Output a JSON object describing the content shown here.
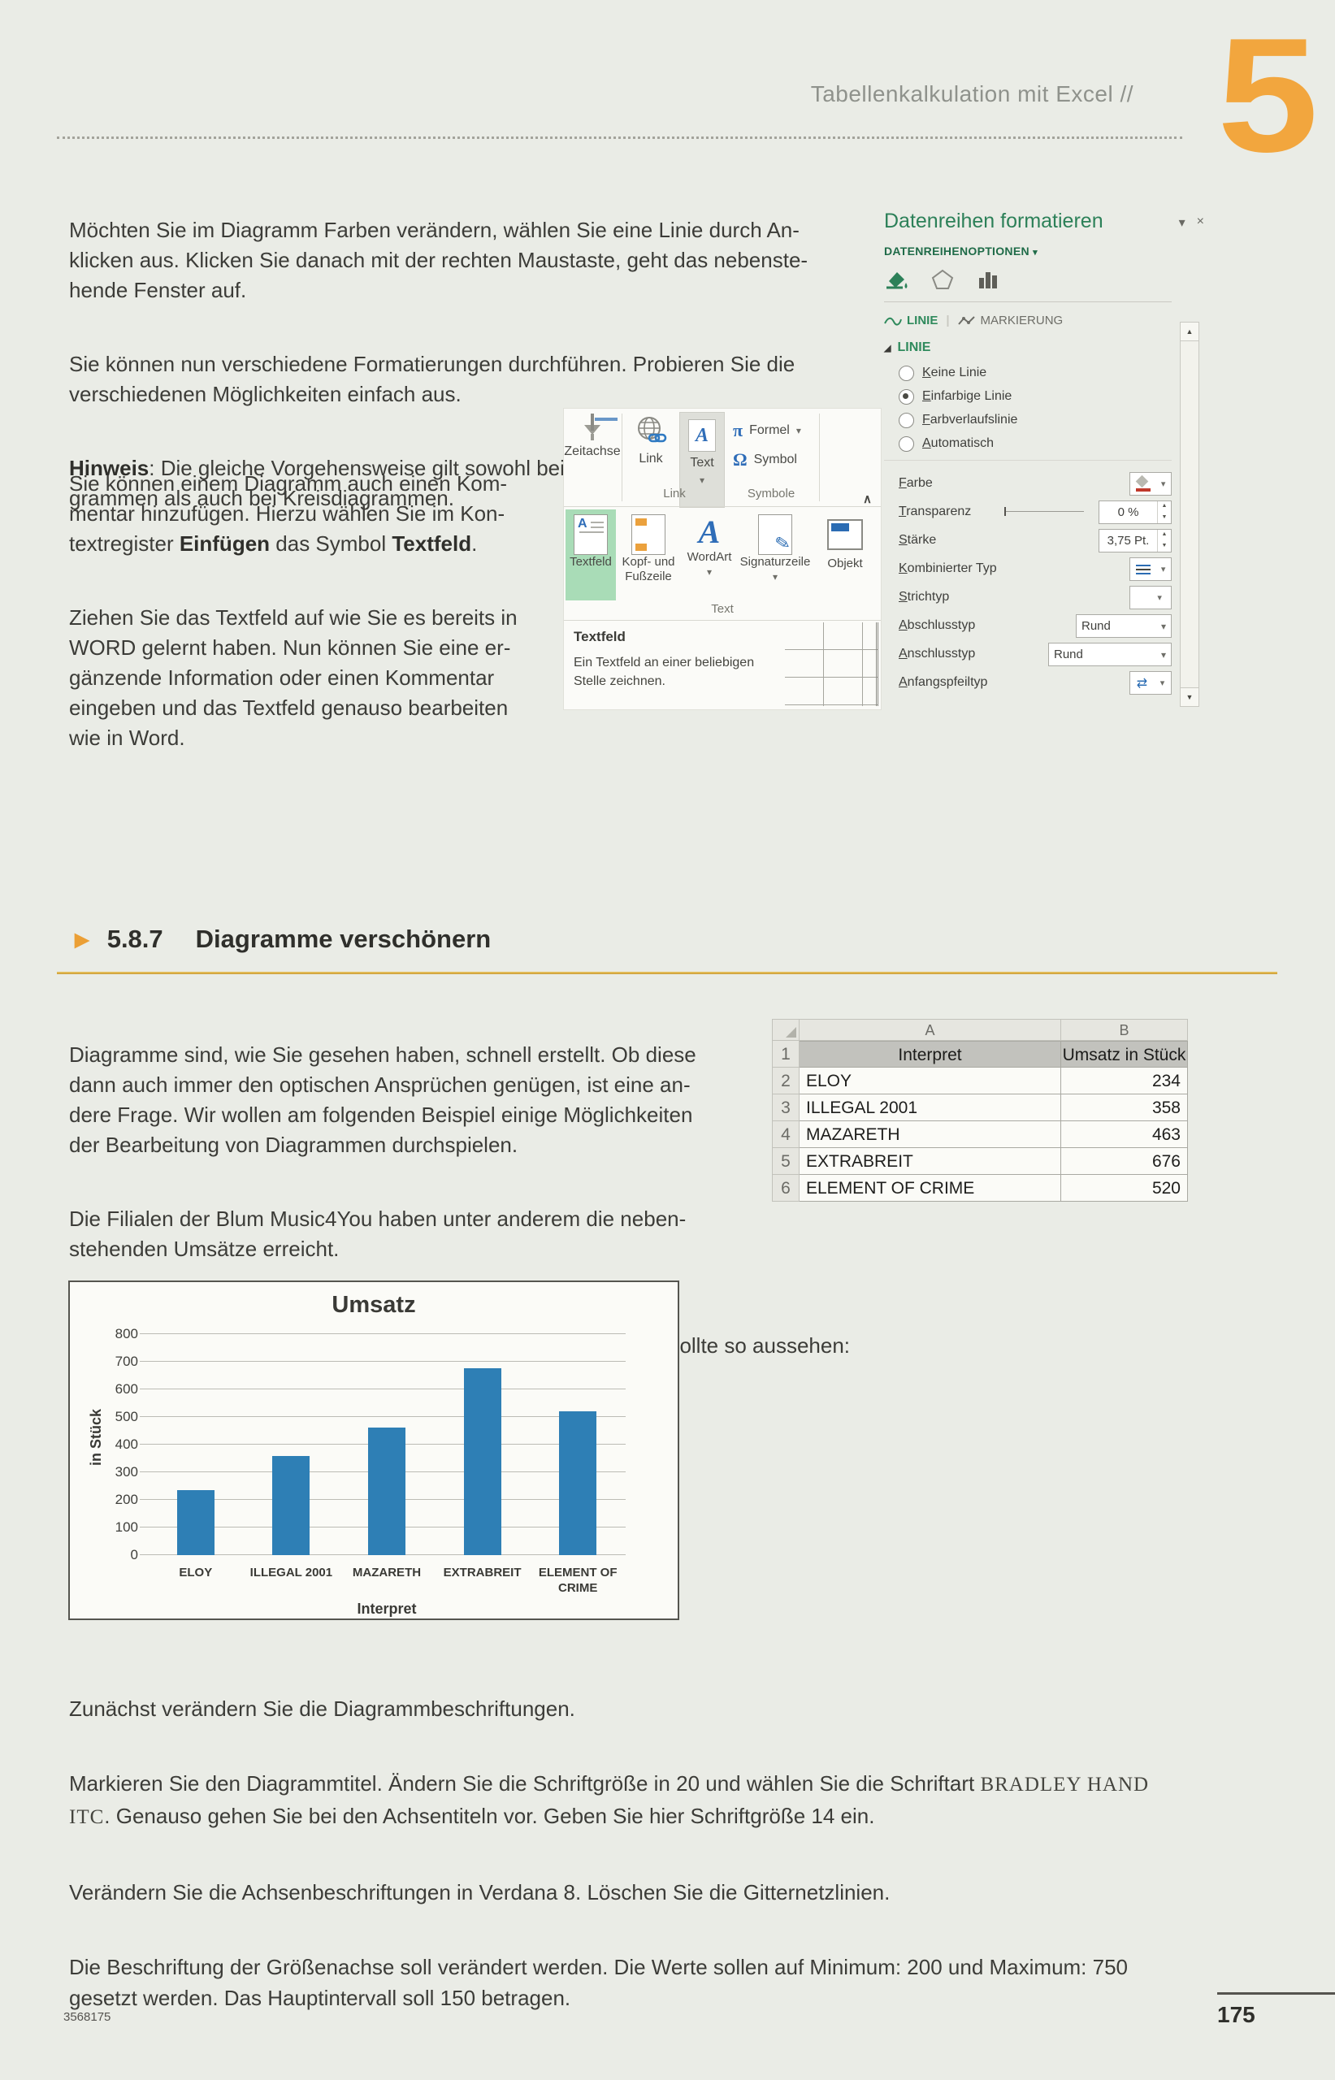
{
  "page": {
    "header_title": "Tabellenkalkulation mit Excel  //",
    "chapter_number": "5",
    "footer_code": "3568175",
    "page_number": "175"
  },
  "colors": {
    "accent_green": "#2c8058",
    "chapter_orange": "#f2a63e",
    "gold_rule": "#d9b14e",
    "bar_blue": "#2e7fb5",
    "selection_mint": "#a9dcb7"
  },
  "icons": {
    "dropdown": "▾",
    "close": "×",
    "pi": "π",
    "omega": "Ω",
    "pen": "✎",
    "arrows_swap": "⇄",
    "spin_up": "▲",
    "spin_down": "▼",
    "scroll_up": "▲",
    "scroll_down": "▼",
    "section_marker": "◢",
    "heading_arrow": "▶",
    "collapse": "∧"
  },
  "intro": {
    "p1": "Möchten Sie im Diagramm Farben verändern, wählen Sie eine Linie durch An-\nklicken aus. Klicken Sie danach mit der rechten Maustaste, geht das nebenste-\nhende Fenster auf.",
    "p2": "Sie können nun verschiedene Formatierungen durchführen. Probieren Sie die\nverschiedenen Möglichkeiten einfach aus.",
    "p3_label": "Hinweis",
    "p3_rest": ": Die gleiche Vorgehensweise gilt sowohl bei Balken- und Säulendia-\ngrammen als auch bei Kreisdiagrammen.",
    "p4_a": "Sie können einem Diagramm auch einen Kom-\nmentar hinzufügen. Hierzu wählen Sie im Kon-\ntextregister ",
    "p4_bold1": "Einfügen",
    "p4_mid": " das Symbol ",
    "p4_bold2": "Textfeld",
    "p4_end": ".",
    "p5": "Ziehen Sie das Textfeld auf wie Sie es bereits in\nWORD gelernt haben. Nun können Sie eine er-\ngänzende Information oder einen Kommentar\neingeben und das Textfeld genauso bearbeiten\nwie in Word."
  },
  "ribbon": {
    "zeitachse_label": "Zeitachse",
    "link_label": "Link",
    "text_label": "Text",
    "formel_label": "Formel",
    "symbol_label": "Symbol",
    "group_link": "Link",
    "group_symbole": "Symbole",
    "item_textfeld": "Textfeld",
    "item_kopf": "Kopf- und Fußzeile",
    "item_wordart": "WordArt",
    "item_signatur": "Signaturzeile",
    "item_objekt": "Objekt",
    "group_text": "Text",
    "tooltip_title": "Textfeld",
    "tooltip_text": "Ein Textfeld an einer beliebigen\nStelle zeichnen."
  },
  "panel": {
    "title": "Datenreihen formatieren",
    "options_label": "DATENREIHENOPTIONEN",
    "tab_linie": "LINIE",
    "tab_markierung": "MARKIERUNG",
    "section_label": "LINIE",
    "radios": [
      {
        "label": "Keine Linie",
        "selected": false
      },
      {
        "label": "Einfarbige Linie",
        "selected": true
      },
      {
        "label": "Farbverlaufslinie",
        "selected": false
      },
      {
        "label": "Automatisch",
        "selected": false
      }
    ],
    "farbe_label": "Farbe",
    "transparenz_label": "Transparenz",
    "transparenz_value": "0 %",
    "staerke_label": "Stärke",
    "staerke_value": "3,75 Pt.",
    "kombinierter_label": "Kombinierter Typ",
    "strichtyp_label": "Strichtyp",
    "abschluss_label": "Abschlusstyp",
    "abschluss_value": "Rund",
    "anschluss_label": "Anschlusstyp",
    "anschluss_value": "Rund",
    "anfangspfeil_label": "Anfangspfeiltyp"
  },
  "section": {
    "number": "5.8.7",
    "title": "Diagramme verschönern"
  },
  "body2": {
    "p6": "Diagramme sind, wie Sie gesehen haben, schnell erstellt. Ob diese\ndann auch immer den optischen Ansprüchen genügen, ist eine an-\ndere Frage. Wir wollen am folgenden Beispiel einige Möglichkeiten\nder Bearbeitung von Diagrammen durchspielen.",
    "p7": "Die Filialen der Blum Music4You haben unter anderem die neben-\nstehenden Umsätze erreicht.",
    "p8": "Erstellen Sie ein einfaches Säulendiagramm. Dieses Diagramm sollte so aussehen:"
  },
  "xltable": {
    "col_a": "A",
    "col_b": "B",
    "header": {
      "n": "1",
      "a": "Interpret",
      "b": "Umsatz in Stück"
    },
    "rows": [
      {
        "n": "2",
        "a": "ELOY",
        "b": "234"
      },
      {
        "n": "3",
        "a": "ILLEGAL 2001",
        "b": "358"
      },
      {
        "n": "4",
        "a": "MAZARETH",
        "b": "463"
      },
      {
        "n": "5",
        "a": "EXTRABREIT",
        "b": "676"
      },
      {
        "n": "6",
        "a": "ELEMENT OF CRIME",
        "b": "520"
      }
    ]
  },
  "chart_data": {
    "type": "bar",
    "title": "Umsatz",
    "categories": [
      "ELOY",
      "ILLEGAL 2001",
      "MAZARETH",
      "EXTRABREIT",
      "ELEMENT OF CRIME"
    ],
    "values": [
      234,
      358,
      463,
      676,
      520
    ],
    "xlabel": "Interpret",
    "ylabel": "in Stück",
    "ylim": [
      0,
      800
    ],
    "ytick_step": 100,
    "grid": true,
    "legend": false,
    "bar_color": "#2e7fb5"
  },
  "outro": {
    "p9": "Zunächst verändern Sie die Diagrammbeschriftungen.",
    "p10_a": "Markieren Sie den Diagrammtitel. Ändern Sie die Schriftgröße in 20 und wählen Sie die Schriftart ",
    "p10_font": "BRADLEY HAND\nITC",
    "p10_b": ". Genauso gehen Sie bei den Achsentiteln vor. Geben Sie hier Schriftgröße 14 ein.",
    "p11": "Verändern Sie die Achsenbeschriftungen in Verdana 8. Löschen Sie die Gitternetzlinien.",
    "p12": "Die Beschriftung der Größenachse soll verändert werden. Die Werte sollen auf Minimum: 200 und Maximum: 750\ngesetzt werden. Das Hauptintervall soll 150 betragen."
  }
}
